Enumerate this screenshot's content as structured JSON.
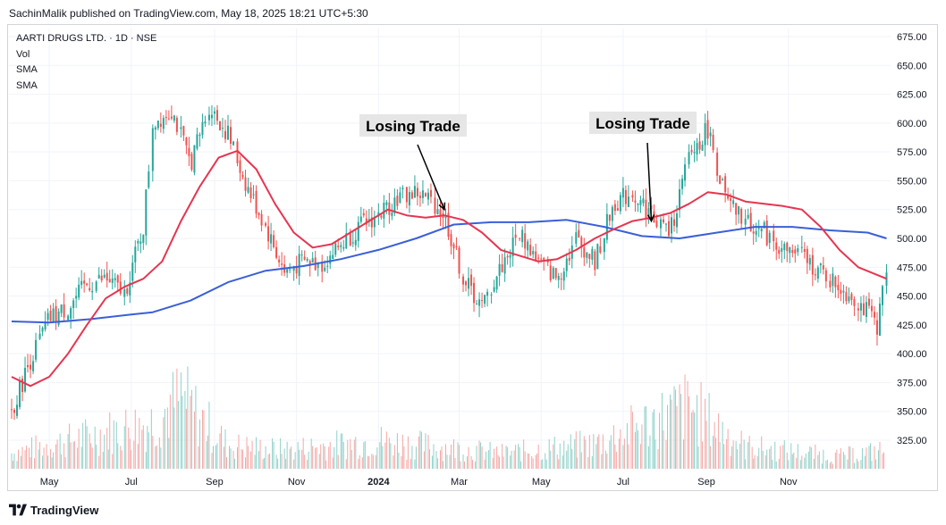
{
  "header": {
    "publisher_line": "SachinMalik published on TradingView.com, May 18, 2025 18:21 UTC+5:30"
  },
  "legend": {
    "symbol": "AARTI DRUGS LTD. · 1D · NSE",
    "vol": "Vol",
    "sma1": "SMA",
    "sma2": "SMA"
  },
  "footer": {
    "brand": "TradingView"
  },
  "colors": {
    "up": "#26a69a",
    "down": "#ef5350",
    "sma_fast": "#e63550",
    "sma_slow": "#3a5fd8",
    "grid": "#f0f3fa"
  },
  "chart_data": {
    "type": "line",
    "title": "AARTI DRUGS LTD. · 1D · NSE",
    "ylim": [
      300,
      680
    ],
    "y_ticks": [
      "675.00",
      "650.00",
      "625.00",
      "600.00",
      "575.00",
      "550.00",
      "525.00",
      "500.00",
      "475.00",
      "450.00",
      "425.00",
      "400.00",
      "375.00",
      "350.00",
      "325.00"
    ],
    "x_labels": [
      "May",
      "Jul",
      "Sep",
      "Nov",
      "2024",
      "Mar",
      "May",
      "Jul",
      "Sep",
      "Nov"
    ],
    "price_series": {
      "name": "",
      "x": [
        "2023-04-03",
        "2023-04-17",
        "2023-05-01",
        "2023-05-15",
        "2023-05-29",
        "2023-06-12",
        "2023-06-26",
        "2023-07-10",
        "2023-07-17",
        "2023-07-31",
        "2023-08-14",
        "2023-08-28",
        "2023-09-11",
        "2023-09-25",
        "2023-10-09",
        "2023-10-23",
        "2023-11-06",
        "2023-11-20",
        "2023-12-04",
        "2023-12-18",
        "2024-01-01",
        "2024-01-15",
        "2024-01-29",
        "2024-02-12",
        "2024-02-19",
        "2024-03-04",
        "2024-03-18",
        "2024-04-01",
        "2024-04-15",
        "2024-04-29",
        "2024-05-13",
        "2024-05-27",
        "2024-06-10",
        "2024-06-24",
        "2024-07-08",
        "2024-07-22",
        "2024-08-05",
        "2024-08-19",
        "2024-09-02",
        "2024-09-16",
        "2024-09-30",
        "2024-10-14",
        "2024-10-28",
        "2024-11-11",
        "2024-11-25",
        "2024-12-09",
        "2024-12-23",
        "2025-01-06",
        "2025-01-13"
      ],
      "values": [
        350,
        395,
        430,
        440,
        460,
        465,
        452,
        510,
        600,
        612,
        565,
        615,
        590,
        545,
        510,
        470,
        480,
        478,
        495,
        510,
        520,
        535,
        540,
        530,
        520,
        465,
        440,
        475,
        505,
        480,
        465,
        500,
        480,
        530,
        540,
        520,
        505,
        570,
        595,
        530,
        515,
        505,
        490,
        485,
        470,
        458,
        445,
        425,
        470
      ]
    },
    "sma_fast": {
      "name": "",
      "x": [
        "2023-04-03",
        "2023-04-17",
        "2023-05-01",
        "2023-05-15",
        "2023-05-29",
        "2023-06-12",
        "2023-06-26",
        "2023-07-10",
        "2023-07-24",
        "2023-08-07",
        "2023-08-21",
        "2023-09-04",
        "2023-09-18",
        "2023-10-02",
        "2023-10-16",
        "2023-10-30",
        "2023-11-13",
        "2023-11-27",
        "2023-12-11",
        "2023-12-25",
        "2024-01-08",
        "2024-01-22",
        "2024-02-05",
        "2024-02-19",
        "2024-03-04",
        "2024-03-18",
        "2024-04-01",
        "2024-04-15",
        "2024-04-29",
        "2024-05-13",
        "2024-05-27",
        "2024-06-10",
        "2024-06-24",
        "2024-07-08",
        "2024-07-22",
        "2024-08-05",
        "2024-08-19",
        "2024-09-02",
        "2024-09-16",
        "2024-09-30",
        "2024-10-14",
        "2024-10-28",
        "2024-11-11",
        "2024-11-25",
        "2024-12-09",
        "2024-12-23",
        "2025-01-13"
      ],
      "values": [
        380,
        372,
        380,
        400,
        425,
        448,
        458,
        465,
        480,
        515,
        545,
        570,
        576,
        560,
        530,
        505,
        492,
        495,
        505,
        515,
        525,
        520,
        518,
        520,
        516,
        505,
        490,
        485,
        480,
        482,
        490,
        500,
        508,
        515,
        518,
        522,
        530,
        540,
        538,
        532,
        530,
        528,
        525,
        510,
        490,
        475,
        465
      ]
    },
    "sma_slow": {
      "name": "",
      "x": [
        "2023-04-03",
        "2023-05-01",
        "2023-06-01",
        "2023-07-01",
        "2023-07-17",
        "2023-08-14",
        "2023-09-11",
        "2023-10-09",
        "2023-11-06",
        "2023-12-04",
        "2024-01-01",
        "2024-01-29",
        "2024-02-26",
        "2024-03-25",
        "2024-04-22",
        "2024-05-20",
        "2024-06-17",
        "2024-07-15",
        "2024-08-12",
        "2024-09-09",
        "2024-10-07",
        "2024-11-04",
        "2024-12-02",
        "2024-12-30",
        "2025-01-13"
      ],
      "values": [
        428,
        427,
        430,
        434,
        436,
        446,
        462,
        472,
        476,
        482,
        490,
        500,
        512,
        514,
        514,
        516,
        510,
        502,
        500,
        505,
        510,
        510,
        507,
        505,
        500
      ]
    },
    "volume": {
      "name": "Vol",
      "x": [
        "2023-04-03",
        "2023-07-17",
        "2023-08-07",
        "2023-09-11",
        "2023-10-23",
        "2024-01-01",
        "2024-04-01",
        "2024-06-10",
        "2024-08-19",
        "2024-09-30",
        "2024-12-09",
        "2025-01-13"
      ],
      "values": [
        10,
        30,
        45,
        15,
        12,
        18,
        10,
        16,
        40,
        14,
        8,
        12
      ]
    },
    "annotations": [
      {
        "text": "Losing Trade",
        "x": "2024-02-19",
        "y": 525
      },
      {
        "text": "Losing Trade",
        "x": "2024-07-22",
        "y": 515
      }
    ]
  }
}
